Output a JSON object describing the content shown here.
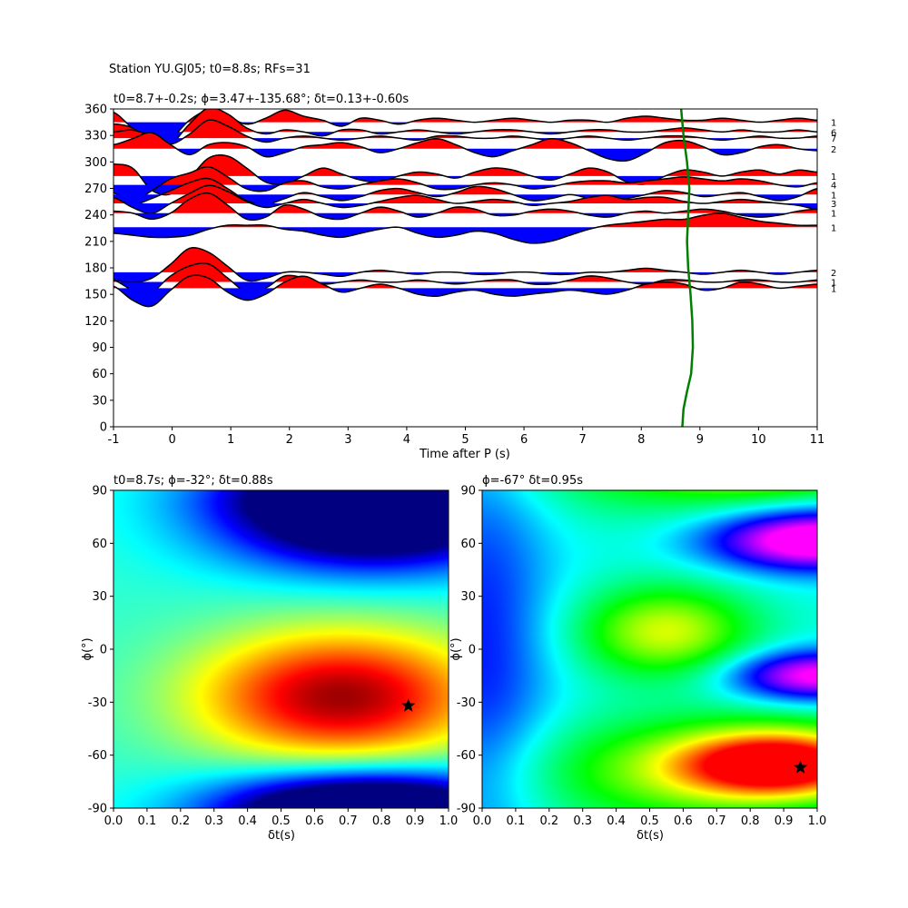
{
  "suptitle": "Station YU.GJ05; t0=8.8s; RFs=31",
  "chart_data": [
    {
      "type": "line",
      "name": "rf-traces",
      "title": "t0=8.7+-0.2s; ϕ=3.47+-135.68°; δt=0.13+-0.60s",
      "xlabel": "Time after P (s)",
      "ylabel": "",
      "xlim": [
        -1,
        11
      ],
      "ylim": [
        0,
        360
      ],
      "xticks": [
        "-1",
        "0",
        "1",
        "2",
        "3",
        "4",
        "5",
        "6",
        "7",
        "8",
        "9",
        "10",
        "11"
      ],
      "yticks": [
        "0",
        "30",
        "60",
        "90",
        "120",
        "150",
        "180",
        "210",
        "240",
        "270",
        "300",
        "330",
        "360"
      ],
      "fill_positive_color": "#ff0000",
      "fill_negative_color": "#0000ff",
      "line_color": "#000000",
      "t0_curve_color": "#008000",
      "traces": [
        {
          "baz": 345,
          "count": "1",
          "amps": [
            0.5,
            -0.3,
            -0.9,
            -0.8,
            0.1,
            0.6,
            0.3,
            -0.1,
            0.2,
            0.6,
            0.3,
            0.1,
            -0.2,
            0.2,
            0.1,
            -0.1,
            0.1,
            0.2,
            0.1,
            0,
            0.1,
            0.2,
            0.1,
            0,
            0.1,
            0.1,
            0,
            0.2,
            0.3,
            0.2,
            0.1,
            0.1,
            0.2,
            0.1,
            0,
            0.1,
            0.2,
            0.1
          ]
        },
        {
          "baz": 334,
          "count": "6",
          "amps": [
            0.4,
            0.2,
            -0.5,
            -0.6,
            0.4,
            1.2,
            0.9,
            0.2,
            -0.1,
            0.1,
            0,
            -0.2,
            0.1,
            0.1,
            -0.1,
            0,
            0.1,
            0,
            -0.1,
            0,
            0.1,
            0.1,
            0,
            -0.1,
            0,
            0.1,
            0.1,
            0,
            0,
            0.1,
            0.2,
            0.1,
            0,
            0.1,
            0,
            0,
            0.1,
            0
          ]
        },
        {
          "baz": 327,
          "count": "7",
          "amps": [
            0.3,
            0.4,
            0.1,
            -0.3,
            0.2,
            0.9,
            0.6,
            0.1,
            -0.2,
            0,
            0.1,
            0,
            -0.1,
            0,
            0.1,
            0,
            -0.1,
            0.1,
            0.1,
            0,
            0,
            0.1,
            0,
            -0.1,
            0,
            0.1,
            0,
            -0.1,
            0,
            0.1,
            0.1,
            0,
            -0.1,
            0,
            0.1,
            0,
            0,
            0.1
          ]
        },
        {
          "baz": 315,
          "count": "2",
          "amps": [
            0.2,
            0.5,
            0.8,
            0.2,
            -0.3,
            0.2,
            0.3,
            0.1,
            -0.4,
            -0.2,
            0.1,
            0.2,
            0.3,
            0.1,
            -0.2,
            0,
            0.3,
            0.5,
            0.2,
            -0.2,
            -0.4,
            -0.1,
            0.2,
            0.5,
            0.3,
            -0.1,
            -0.5,
            -0.6,
            -0.2,
            0.3,
            0.4,
            0.1,
            -0.3,
            -0.2,
            0.1,
            0.2,
            0,
            -0.1
          ]
        },
        {
          "baz": 284,
          "count": "1",
          "amps": [
            0.6,
            0.4,
            -0.7,
            -0.9,
            -0.1,
            0.9,
            1.0,
            0.4,
            -0.3,
            -0.4,
            0,
            0.4,
            0.1,
            -0.2,
            -0.3,
            0,
            0.2,
            0.1,
            -0.1,
            0.2,
            0.4,
            0.3,
            0,
            -0.2,
            0.1,
            0.4,
            0.2,
            -0.3,
            -0.4,
            0,
            0.3,
            0.2,
            0,
            0.2,
            0.3,
            0.1,
            0.3,
            0.2
          ]
        },
        {
          "baz": 274,
          "count": "4",
          "amps": [
            -0.4,
            -0.8,
            -0.3,
            0.3,
            0.6,
            0.9,
            0.4,
            -0.2,
            -0.3,
            0.1,
            0.2,
            -0.1,
            -0.2,
            0,
            0.2,
            0.3,
            0.1,
            -0.2,
            -0.2,
            0,
            0.1,
            0,
            -0.2,
            -0.1,
            0.1,
            0.2,
            0.2,
            0.1,
            0.2,
            0.3,
            0.4,
            0.3,
            0.2,
            0.3,
            0.2,
            0,
            -0.1,
            0.1
          ]
        },
        {
          "baz": 263,
          "count": "1",
          "amps": [
            -0.2,
            -0.5,
            -0.2,
            0.2,
            0.6,
            0.8,
            0.3,
            -0.3,
            -0.5,
            -0.2,
            0.1,
            -0.1,
            -0.3,
            -0.1,
            0.2,
            0.3,
            0.1,
            -0.1,
            0.1,
            0.4,
            0.3,
            0,
            -0.3,
            -0.2,
            0,
            -0.2,
            -0.4,
            -0.2,
            0,
            0.2,
            0.1,
            -0.1,
            0,
            0.1,
            -0.1,
            -0.3,
            -0.1,
            0.3
          ]
        },
        {
          "baz": 253,
          "count": "3",
          "amps": [
            0.3,
            -0.2,
            -0.5,
            0,
            0.5,
            0.9,
            0.6,
            0.1,
            -0.2,
            0,
            0.2,
            0,
            -0.2,
            -0.1,
            0.1,
            0.3,
            0.4,
            0.2,
            0,
            0.1,
            0.2,
            0.1,
            -0.1,
            0,
            0.1,
            0.3,
            0.4,
            0.2,
            0.3,
            0.3,
            0.1,
            0,
            0.1,
            0.2,
            0.1,
            0,
            -0.1,
            -0.3
          ]
        },
        {
          "baz": 242,
          "count": "1",
          "amps": [
            0.1,
            0,
            -0.3,
            0,
            0.7,
            1.0,
            0.4,
            -0.3,
            -0.2,
            0.4,
            0.2,
            -0.2,
            -0.3,
            0,
            0.3,
            0.1,
            -0.2,
            0,
            0.3,
            0.2,
            -0.1,
            -0.1,
            0.1,
            0.2,
            0.1,
            -0.1,
            -0.2,
            0,
            0.1,
            0,
            0.1,
            0.2,
            0.1,
            -0.1,
            -0.2,
            -0.1,
            0.1,
            0.2
          ]
        },
        {
          "baz": 226,
          "count": "1",
          "amps": [
            -0.3,
            -0.4,
            -0.5,
            -0.5,
            -0.4,
            -0.1,
            0.1,
            0.1,
            0.1,
            -0.1,
            -0.2,
            -0.4,
            -0.5,
            -0.3,
            -0.1,
            0,
            -0.3,
            -0.5,
            -0.4,
            -0.2,
            -0.3,
            -0.6,
            -0.8,
            -0.7,
            -0.4,
            -0.1,
            0.1,
            0.2,
            0.3,
            0.4,
            0.4,
            0.6,
            0.7,
            0.5,
            0.3,
            0.2,
            0.1,
            0.1
          ]
        },
        {
          "baz": 175,
          "count": "2",
          "amps": [
            -0.4,
            -0.5,
            -0.3,
            0.4,
            1.2,
            1.0,
            0.3,
            -0.4,
            -0.3,
            0,
            0,
            -0.1,
            -0.2,
            0,
            0.1,
            0,
            -0.1,
            0,
            0,
            -0.1,
            -0.1,
            0,
            0,
            -0.1,
            -0.1,
            0,
            0,
            0.1,
            0.2,
            0.1,
            0,
            -0.1,
            0,
            0.1,
            0,
            -0.1,
            0,
            0.1
          ]
        },
        {
          "baz": 164,
          "count": "1",
          "amps": [
            0.1,
            -0.4,
            -0.5,
            0.3,
            0.8,
            0.9,
            0.2,
            -0.5,
            -0.3,
            0.3,
            0.2,
            -0.1,
            0,
            0.1,
            0,
            0,
            0.1,
            0,
            -0.1,
            0,
            0.1,
            0.1,
            -0.1,
            -0.1,
            0.1,
            0.3,
            0.2,
            0,
            -0.1,
            0.1,
            0.1,
            0,
            0,
            0.1,
            0.1,
            0,
            0,
            0.1
          ]
        },
        {
          "baz": 157,
          "count": "1",
          "amps": [
            0.1,
            -0.6,
            -0.9,
            -0.1,
            0.6,
            0.5,
            -0.2,
            -0.6,
            -0.3,
            0.3,
            0.6,
            0.2,
            -0.2,
            0,
            0.2,
            0,
            -0.3,
            -0.4,
            -0.2,
            -0.1,
            -0.3,
            -0.4,
            -0.3,
            -0.2,
            -0.1,
            -0.2,
            -0.3,
            -0.1,
            0.2,
            0.3,
            0.2,
            -0.1,
            0,
            0.3,
            0.2,
            0,
            0.1,
            0.2
          ]
        }
      ],
      "t0_curve": {
        "baz": [
          0,
          20,
          40,
          60,
          90,
          120,
          150,
          180,
          210,
          240,
          270,
          300,
          330,
          360
        ],
        "t": [
          8.7,
          8.72,
          8.78,
          8.85,
          8.88,
          8.87,
          8.84,
          8.8,
          8.78,
          8.8,
          8.82,
          8.78,
          8.72,
          8.68
        ]
      }
    },
    {
      "type": "heatmap",
      "name": "grid-search-1",
      "title": "t0=8.7s; ϕ=-32°; δt=0.88s",
      "xlabel": "δt(s)",
      "ylabel": "ϕ(°)",
      "xlim": [
        0,
        1
      ],
      "ylim": [
        -90,
        90
      ],
      "xticks": [
        "0.0",
        "0.1",
        "0.2",
        "0.3",
        "0.4",
        "0.5",
        "0.6",
        "0.7",
        "0.8",
        "0.9",
        "1.0"
      ],
      "yticks": [
        "-90",
        "-60",
        "-30",
        "0",
        "30",
        "60",
        "90"
      ],
      "colormap": "jet",
      "best": {
        "dt": 0.88,
        "phi": -32
      },
      "bumps": [
        {
          "dt": 0.68,
          "phi": -27,
          "sdt": 0.3,
          "sphi": 26,
          "amp": 0.55
        },
        {
          "dt": 0.78,
          "phi": 72,
          "sdt": 0.32,
          "sphi": 20,
          "amp": -0.6
        },
        {
          "dt": 0.75,
          "phi": -88,
          "sdt": 0.3,
          "sphi": 14,
          "amp": -0.45
        }
      ],
      "base": 0.42,
      "x_decay": 0.4
    },
    {
      "type": "heatmap",
      "name": "grid-search-2",
      "title": "ϕ=-67° δt=0.95s",
      "xlabel": "δt(s)",
      "ylabel": "ϕ(°)",
      "xlim": [
        0,
        1
      ],
      "ylim": [
        -90,
        90
      ],
      "xticks": [
        "0.0",
        "0.1",
        "0.2",
        "0.3",
        "0.4",
        "0.5",
        "0.6",
        "0.7",
        "0.8",
        "0.9",
        "1.0"
      ],
      "yticks": [
        "-90",
        "-60",
        "-30",
        "0",
        "30",
        "60",
        "90"
      ],
      "colormap": "gist_rainbow_r",
      "best": {
        "dt": 0.95,
        "phi": -67
      },
      "bumps": [
        {
          "dt": 0.9,
          "phi": -65,
          "sdt": 0.22,
          "sphi": 14,
          "amp": 0.6
        },
        {
          "dt": 0.55,
          "phi": 10,
          "sdt": 0.18,
          "sphi": 18,
          "amp": 0.35
        },
        {
          "dt": 0.6,
          "phi": -70,
          "sdt": 0.35,
          "sphi": 22,
          "amp": 0.25
        },
        {
          "dt": 1.0,
          "phi": 62,
          "sdt": 0.22,
          "sphi": 12,
          "amp": -0.55
        },
        {
          "dt": 1.0,
          "phi": -15,
          "sdt": 0.18,
          "sphi": 10,
          "amp": -0.45
        },
        {
          "dt": 0.0,
          "phi": 0,
          "sdt": 0.15,
          "sphi": 90,
          "amp": -0.2
        }
      ],
      "base": 0.42,
      "x_decay": 0.0
    }
  ]
}
